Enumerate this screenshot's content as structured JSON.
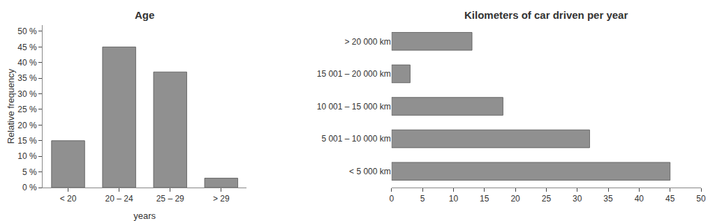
{
  "chart_data": [
    {
      "type": "bar",
      "title": "Age",
      "categories": [
        "< 20",
        "20 – 24",
        "25 – 29",
        "> 29"
      ],
      "values": [
        15,
        45,
        37,
        3
      ],
      "color": "#909090",
      "xlabel": "years",
      "ylabel": "Relative frequency",
      "ylim": [
        0,
        52
      ],
      "yticks": [
        {
          "value": 0,
          "label": "0 %"
        },
        {
          "value": 5,
          "label": "5 %"
        },
        {
          "value": 10,
          "label": "10 %"
        },
        {
          "value": 15,
          "label": "15 %"
        },
        {
          "value": 20,
          "label": "20 %"
        },
        {
          "value": 25,
          "label": "25 %"
        },
        {
          "value": 30,
          "label": "30 %"
        },
        {
          "value": 35,
          "label": "35 %"
        },
        {
          "value": 40,
          "label": "40 %"
        },
        {
          "value": 45,
          "label": "45 %"
        },
        {
          "value": 50,
          "label": "50 %"
        }
      ],
      "grid": false
    },
    {
      "type": "bar",
      "orientation": "horizontal",
      "title": "Kilometers of car driven per year",
      "categories": [
        "< 5 000 km",
        "5 001 – 10 000 km",
        "10 001 – 15 000 km",
        "15 001 – 20 000 km",
        "> 20 000 km"
      ],
      "values": [
        45,
        32,
        18,
        3,
        13
      ],
      "color": "#909090",
      "xlim": [
        0,
        50
      ],
      "xticks": [
        0,
        5,
        10,
        15,
        20,
        25,
        30,
        35,
        40,
        45,
        50
      ],
      "grid": false
    }
  ]
}
